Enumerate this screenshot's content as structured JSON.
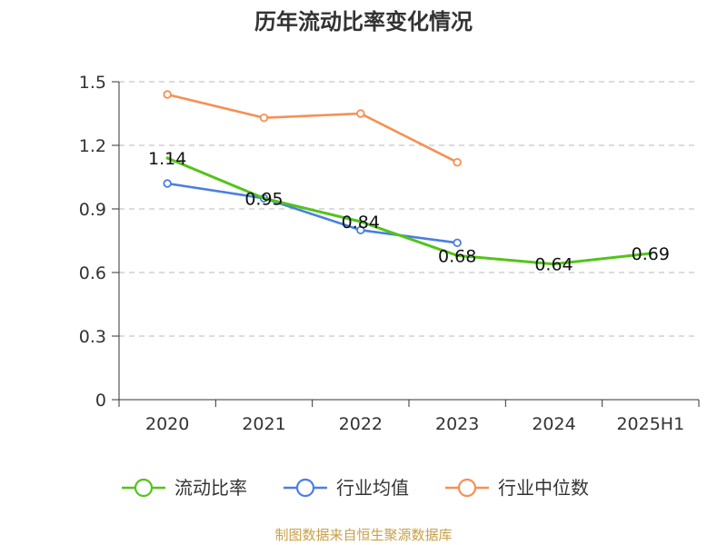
{
  "chart_data": {
    "type": "line",
    "title": "历年流动比率变化情况",
    "categories": [
      "2020",
      "2021",
      "2022",
      "2023",
      "2024",
      "2025H1"
    ],
    "ylim": [
      0,
      1.5
    ],
    "yticks": [
      "0",
      "0.3",
      "0.6",
      "0.9",
      "1.2",
      "1.5"
    ],
    "ytick_values": [
      0,
      0.3,
      0.6,
      0.9,
      1.2,
      1.5
    ],
    "grid": true,
    "legend_position": "bottom",
    "series": [
      {
        "name": "流动比率",
        "color": "#52c41a",
        "values": [
          1.14,
          0.95,
          0.84,
          0.68,
          0.64,
          0.69
        ],
        "labels": [
          "1.14",
          "0.95",
          "0.84",
          "0.68",
          "0.64",
          "0.69"
        ]
      },
      {
        "name": "行业均值",
        "color": "#4a7fe0",
        "values": [
          1.02,
          0.95,
          0.8,
          0.74,
          null,
          null
        ]
      },
      {
        "name": "行业中位数",
        "color": "#f59055",
        "values": [
          1.44,
          1.33,
          1.35,
          1.12,
          null,
          null
        ]
      }
    ],
    "source": "制图数据来自恒生聚源数据库"
  }
}
